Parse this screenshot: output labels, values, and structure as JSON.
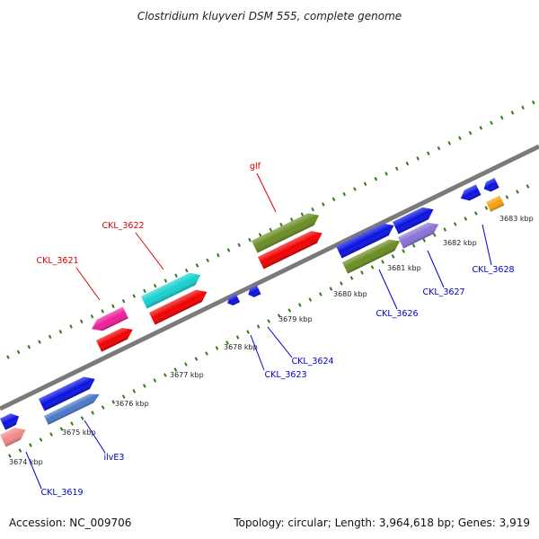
{
  "title": "Clostridium kluyveri DSM 555, complete genome",
  "footer": {
    "accession": "Accession: NC_009706",
    "summary": "Topology: circular; Length: 3,964,618 bp; Genes: 3,919"
  },
  "colors": {
    "backbone": "#7a7a7a",
    "tick_marks": "#2d7a18",
    "label_top": "#dd0000",
    "label_bottom": "#0000cc"
  },
  "ticks": [
    "3674 kbp",
    "3675 kbp",
    "3676 kbp",
    "3677 kbp",
    "3678 kbp",
    "3679 kbp",
    "3680 kbp",
    "3681 kbp",
    "3682 kbp",
    "3683 kbp"
  ],
  "gene_labels": [
    {
      "name": "glf",
      "side": "top"
    },
    {
      "name": "CKL_3622",
      "side": "top"
    },
    {
      "name": "CKL_3621",
      "side": "top"
    },
    {
      "name": "CKL_3628",
      "side": "bottom"
    },
    {
      "name": "CKL_3627",
      "side": "bottom"
    },
    {
      "name": "CKL_3626",
      "side": "bottom"
    },
    {
      "name": "CKL_3624",
      "side": "bottom"
    },
    {
      "name": "CKL_3623",
      "side": "bottom"
    },
    {
      "name": "ilvE3",
      "side": "bottom"
    },
    {
      "name": "CKL_3619",
      "side": "bottom"
    }
  ],
  "features": [
    {
      "name": "feature-blue",
      "color": "#0a12e0"
    },
    {
      "name": "feature-salmon",
      "color": "#f08a8a"
    },
    {
      "name": "feature-steelblue",
      "color": "#4a78c8"
    },
    {
      "name": "feature-magenta",
      "color": "#ee1e9a"
    },
    {
      "name": "feature-red",
      "color": "#f00000"
    },
    {
      "name": "feature-cyan",
      "color": "#16d0d0"
    },
    {
      "name": "feature-olive",
      "color": "#6a8c22"
    },
    {
      "name": "feature-lavender",
      "color": "#8a72d8"
    },
    {
      "name": "feature-orange",
      "color": "#f5a010"
    }
  ]
}
